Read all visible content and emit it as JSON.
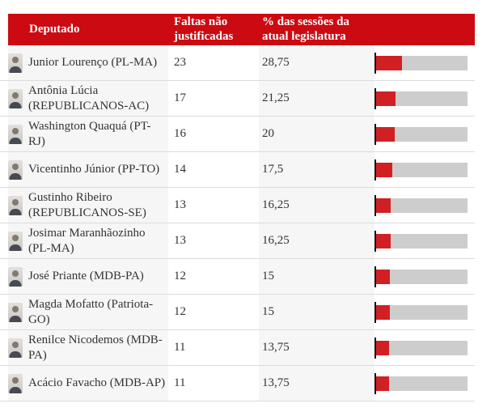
{
  "table": {
    "headers": {
      "deputado": "Deputado",
      "faltas": "Faltas não justificadas",
      "pct": "% das sessões da atual legislatura"
    },
    "rows": [
      {
        "name": "Junior Lourenço (PL-MA)",
        "faltas": "23",
        "pct_label": "28,75",
        "pct": 28.75
      },
      {
        "name": "Antônia Lúcia (REPUBLICANOS-AC)",
        "faltas": "17",
        "pct_label": "21,25",
        "pct": 21.25
      },
      {
        "name": "Washington Quaquá (PT-RJ)",
        "faltas": "16",
        "pct_label": "20",
        "pct": 20
      },
      {
        "name": "Vicentinho Júnior (PP-TO)",
        "faltas": "14",
        "pct_label": "17,5",
        "pct": 17.5
      },
      {
        "name": "Gustinho Ribeiro (REPUBLICANOS-SE)",
        "faltas": "13",
        "pct_label": "16,25",
        "pct": 16.25
      },
      {
        "name": "Josimar Maranhãozinho (PL-MA)",
        "faltas": "13",
        "pct_label": "16,25",
        "pct": 16.25
      },
      {
        "name": "José Priante (MDB-PA)",
        "faltas": "12",
        "pct_label": "15",
        "pct": 15
      },
      {
        "name": "Magda Mofatto (Patriota-GO)",
        "faltas": "12",
        "pct_label": "15",
        "pct": 15
      },
      {
        "name": "Renilce Nicodemos (MDB-PA)",
        "faltas": "11",
        "pct_label": "13,75",
        "pct": 13.75
      },
      {
        "name": "Acácio Favacho (MDB-AP)",
        "faltas": "11",
        "pct_label": "13,75",
        "pct": 13.75
      }
    ]
  },
  "colors": {
    "header_bg": "#cc0a11",
    "bar_fill": "#d12024",
    "bar_track": "#cdcdcd",
    "cell_shade": "#f6f6f6",
    "separator": "#dcdcdc",
    "text": "#333333",
    "tick": "#121212"
  },
  "chart_data": {
    "type": "table",
    "title": "",
    "columns": [
      "Deputado",
      "Faltas não justificadas",
      "% das sessões da atual legislatura"
    ],
    "bar_axis": {
      "min": 0,
      "max": 100,
      "unit": "%",
      "represents": "% das sessões da atual legislatura"
    },
    "rows": [
      {
        "deputado": "Junior Lourenço (PL-MA)",
        "faltas_nao_justificadas": 23,
        "pct_sessoes": 28.75
      },
      {
        "deputado": "Antônia Lúcia (REPUBLICANOS-AC)",
        "faltas_nao_justificadas": 17,
        "pct_sessoes": 21.25
      },
      {
        "deputado": "Washington Quaquá (PT-RJ)",
        "faltas_nao_justificadas": 16,
        "pct_sessoes": 20
      },
      {
        "deputado": "Vicentinho Júnior (PP-TO)",
        "faltas_nao_justificadas": 14,
        "pct_sessoes": 17.5
      },
      {
        "deputado": "Gustinho Ribeiro (REPUBLICANOS-SE)",
        "faltas_nao_justificadas": 13,
        "pct_sessoes": 16.25
      },
      {
        "deputado": "Josimar Maranhãozinho (PL-MA)",
        "faltas_nao_justificadas": 13,
        "pct_sessoes": 16.25
      },
      {
        "deputado": "José Priante (MDB-PA)",
        "faltas_nao_justificadas": 12,
        "pct_sessoes": 15
      },
      {
        "deputado": "Magda Mofatto (Patriota-GO)",
        "faltas_nao_justificadas": 12,
        "pct_sessoes": 15
      },
      {
        "deputado": "Renilce Nicodemos (MDB-PA)",
        "faltas_nao_justificadas": 11,
        "pct_sessoes": 13.75
      },
      {
        "deputado": "Acácio Favacho (MDB-AP)",
        "faltas_nao_justificadas": 11,
        "pct_sessoes": 13.75
      }
    ]
  }
}
